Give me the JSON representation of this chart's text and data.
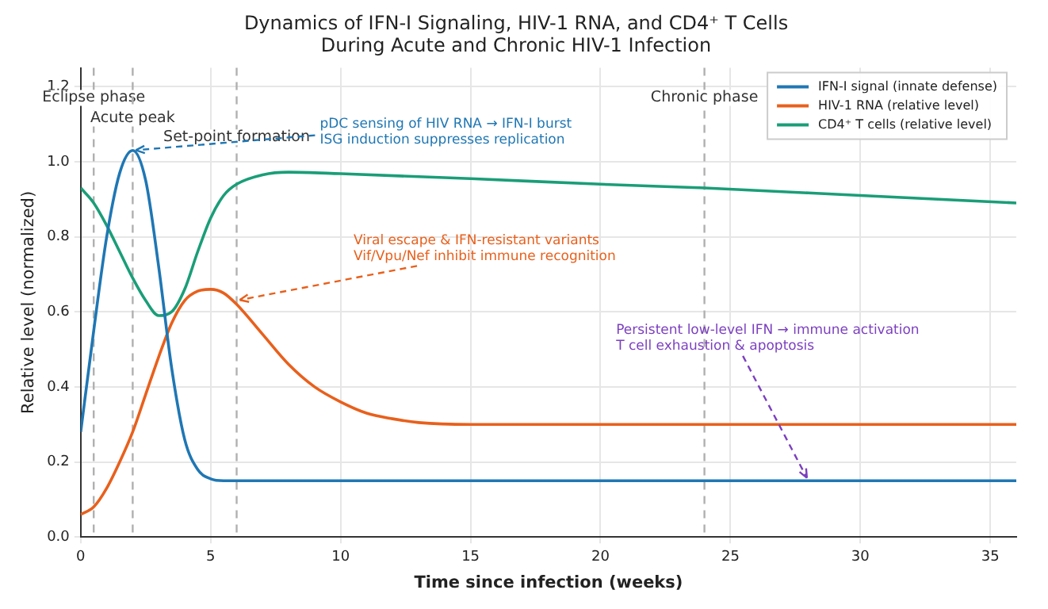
{
  "chart_data": {
    "type": "line",
    "title": "Dynamics of IFN-I Signaling, HIV-1 RNA, and CD4⁺ T Cells\nDuring Acute and Chronic HIV-1 Infection",
    "xlabel": "Time since infection (weeks)",
    "ylabel": "Relative level (normalized)",
    "xlim": [
      0,
      36
    ],
    "xticks": [
      0,
      5,
      10,
      15,
      20,
      25,
      30,
      35
    ],
    "ylim": [
      0,
      1.25
    ],
    "yticks": [
      {
        "value": 0,
        "label": "0.0"
      },
      0.2,
      0.4,
      0.6,
      0.8,
      {
        "value": 1,
        "label": "1.0"
      },
      1.2
    ],
    "grid": true,
    "legend": "top right",
    "line_style": "solid",
    "marker": "none",
    "series": [
      {
        "name": "IFN-I signal (innate defense)",
        "color": "#1f77b4",
        "x": [
          0,
          0.5,
          1,
          1.5,
          2,
          2.5,
          3,
          3.5,
          4,
          4.5,
          5,
          5.5,
          6,
          36
        ],
        "values": [
          0.28,
          0.55,
          0.8,
          0.97,
          1.03,
          0.95,
          0.72,
          0.45,
          0.26,
          0.18,
          0.155,
          0.15,
          0.15,
          0.15
        ]
      },
      {
        "name": "HIV-1 RNA (relative level)",
        "color": "#e8601c",
        "x": [
          0,
          0.5,
          1,
          1.5,
          2,
          2.5,
          3,
          3.5,
          4,
          4.5,
          5,
          5.5,
          6,
          7,
          8,
          9,
          10,
          11,
          12,
          13,
          15,
          20,
          36
        ],
        "values": [
          0.06,
          0.08,
          0.13,
          0.2,
          0.28,
          0.38,
          0.48,
          0.57,
          0.63,
          0.655,
          0.66,
          0.65,
          0.62,
          0.54,
          0.46,
          0.4,
          0.36,
          0.33,
          0.315,
          0.305,
          0.3,
          0.3,
          0.3
        ]
      },
      {
        "name": "CD4⁺ T cells (relative level)",
        "color": "#1a9e77",
        "x": [
          0,
          0.5,
          1,
          1.5,
          2,
          2.5,
          3,
          3.5,
          4,
          4.5,
          5,
          5.5,
          6,
          7,
          8,
          10,
          15,
          20,
          24,
          30,
          36
        ],
        "values": [
          0.93,
          0.89,
          0.83,
          0.76,
          0.69,
          0.63,
          0.59,
          0.6,
          0.66,
          0.76,
          0.85,
          0.91,
          0.94,
          0.965,
          0.972,
          0.968,
          0.955,
          0.94,
          0.93,
          0.91,
          0.89
        ]
      }
    ],
    "ref_lines": [
      {
        "axis": "x",
        "value": 0.5,
        "label": "Eclipse phase",
        "color": "#b0b0b0",
        "line_style": "dashed"
      },
      {
        "axis": "x",
        "value": 2,
        "label": "Acute peak",
        "color": "#b0b0b0",
        "line_style": "dashed"
      },
      {
        "axis": "x",
        "value": 6,
        "label": "Set-point formation",
        "color": "#b0b0b0",
        "line_style": "dashed"
      },
      {
        "axis": "x",
        "value": 24,
        "label": "Chronic phase",
        "color": "#b0b0b0",
        "line_style": "dashed"
      }
    ],
    "annotations": [
      {
        "text": "pDC sensing of HIV RNA → IFN-I burst\nISG induction suppresses replication",
        "x": 2,
        "y": 1.03
      },
      {
        "text": "Viral escape & IFN-resistant variants\nVif/Vpu/Nef inhibit immune recognition",
        "x": 6,
        "y": 0.63
      },
      {
        "text": "Persistent low-level IFN → immune activation\nT cell exhaustion & apoptosis",
        "x": 28,
        "y": 0.15
      }
    ]
  }
}
